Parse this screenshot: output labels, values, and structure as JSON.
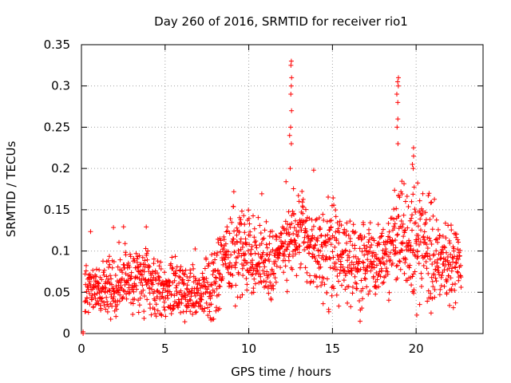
{
  "chart_data": {
    "type": "scatter",
    "title": "Day 260 of 2016, SRMTID for receiver rio1",
    "xlabel": "GPS time / hours",
    "ylabel": "SRMTID / TECUs",
    "xlim": [
      0,
      24
    ],
    "ylim": [
      0,
      0.35
    ],
    "xticks": [
      0,
      5,
      10,
      15,
      20
    ],
    "yticks": [
      0,
      0.05,
      0.1,
      0.15,
      0.2,
      0.25,
      0.3,
      0.35
    ],
    "grid": true,
    "marker": "+",
    "series_color": "#ff0000",
    "series": [
      {
        "name": "SRMTID",
        "trend": [
          [
            0.2,
            0.055,
            0.015
          ],
          [
            1.0,
            0.05,
            0.017
          ],
          [
            2.0,
            0.055,
            0.015
          ],
          [
            3.0,
            0.07,
            0.02
          ],
          [
            4.0,
            0.06,
            0.02
          ],
          [
            5.0,
            0.055,
            0.018
          ],
          [
            6.0,
            0.055,
            0.018
          ],
          [
            7.0,
            0.045,
            0.015
          ],
          [
            8.0,
            0.06,
            0.018
          ],
          [
            8.8,
            0.1,
            0.03
          ],
          [
            9.5,
            0.1,
            0.03
          ],
          [
            10.5,
            0.09,
            0.02
          ],
          [
            11.5,
            0.08,
            0.02
          ],
          [
            12.3,
            0.11,
            0.025
          ],
          [
            13.2,
            0.13,
            0.025
          ],
          [
            14.0,
            0.1,
            0.025
          ],
          [
            15.0,
            0.11,
            0.03
          ],
          [
            16.0,
            0.09,
            0.025
          ],
          [
            17.0,
            0.085,
            0.025
          ],
          [
            18.0,
            0.085,
            0.02
          ],
          [
            18.8,
            0.12,
            0.03
          ],
          [
            19.5,
            0.11,
            0.03
          ],
          [
            20.5,
            0.11,
            0.035
          ],
          [
            21.5,
            0.085,
            0.025
          ],
          [
            22.7,
            0.08,
            0.02
          ]
        ],
        "spikes": [
          {
            "x": 12.5,
            "y": [
              0.33,
              0.325,
              0.31,
              0.3,
              0.29,
              0.27,
              0.25,
              0.24,
              0.23,
              0.2
            ]
          },
          {
            "x": 18.9,
            "y": [
              0.31,
              0.305,
              0.3,
              0.29,
              0.28,
              0.26,
              0.25,
              0.23
            ]
          },
          {
            "x": 19.8,
            "y": [
              0.225,
              0.215,
              0.205,
              0.2
            ]
          }
        ],
        "points": [
          [
            0.1,
            0.0
          ],
          [
            0.1,
            0.002
          ]
        ]
      }
    ]
  }
}
